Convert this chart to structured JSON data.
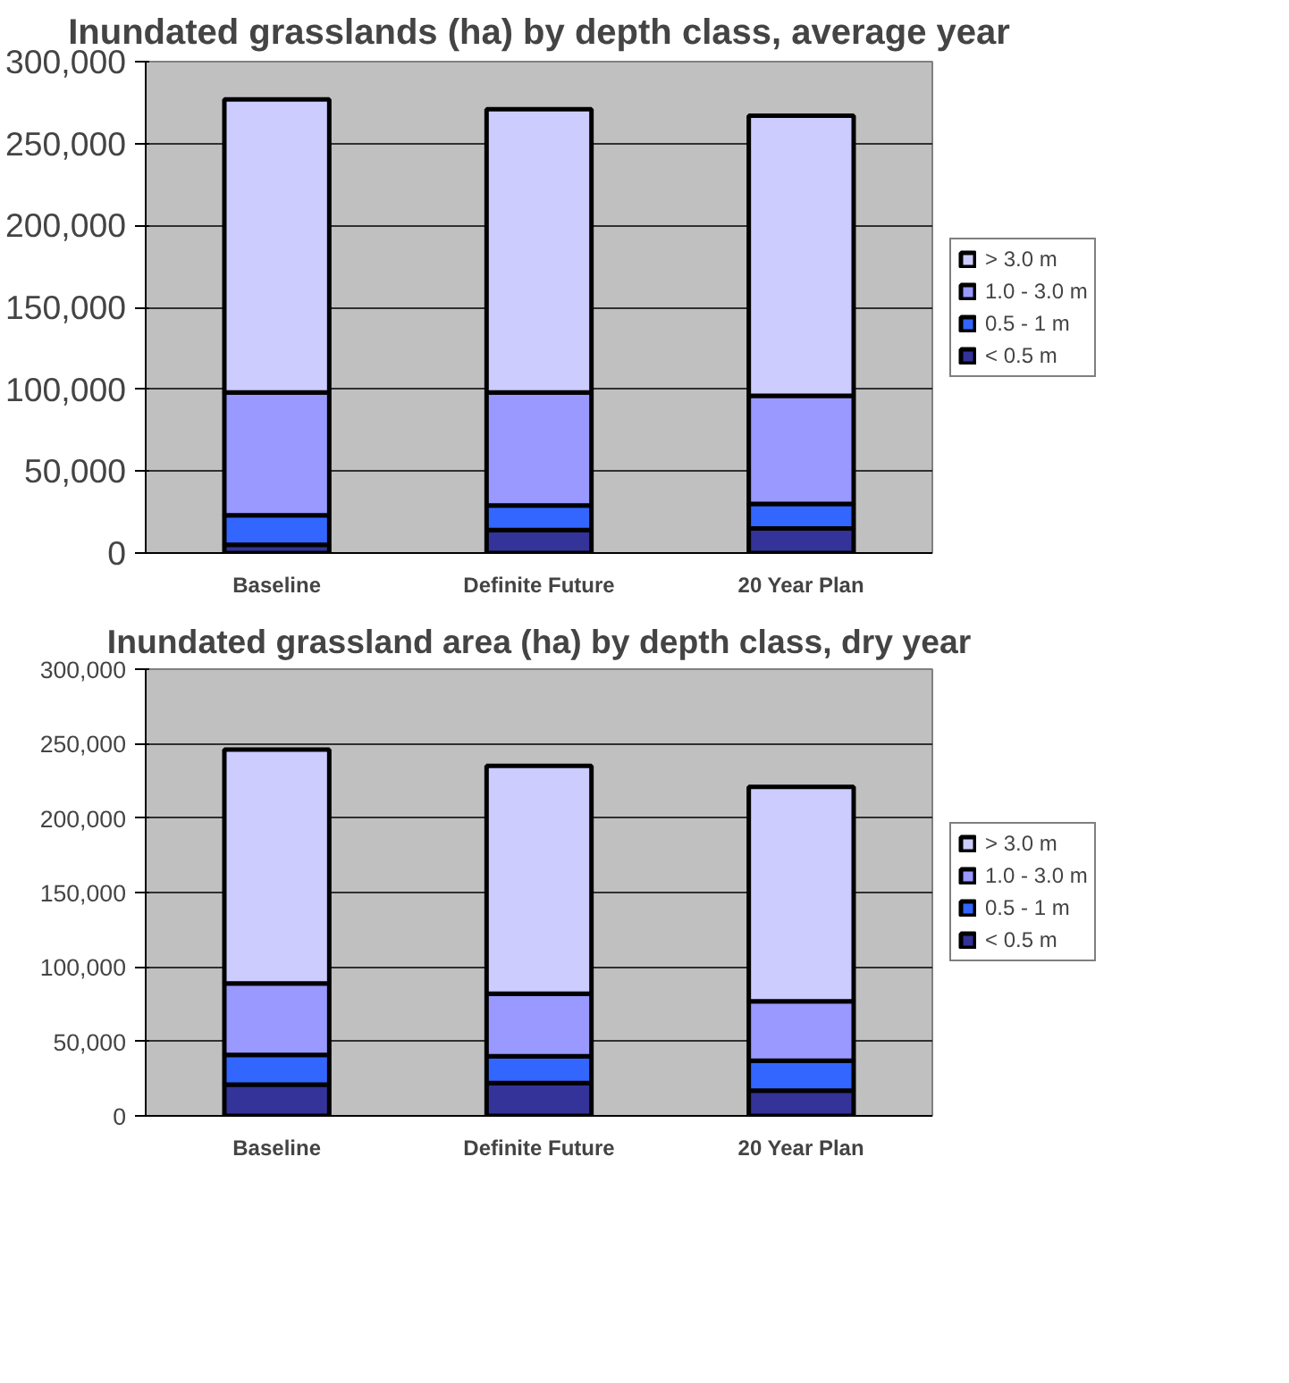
{
  "chart_data": [
    {
      "type": "bar",
      "title": "Inundated grasslands (ha) by depth class, average year",
      "categories": [
        "Baseline",
        "Definite Future",
        "20 Year Plan"
      ],
      "stacked": true,
      "series": [
        {
          "name": "< 0.5 m",
          "color": "#333399",
          "values": [
            5000,
            14000,
            15000
          ]
        },
        {
          "name": "0.5 - 1 m",
          "color": "#3366ff",
          "values": [
            18000,
            15000,
            15000
          ]
        },
        {
          "name": "1.0 - 3.0 m",
          "color": "#9999ff",
          "values": [
            75000,
            69000,
            66000
          ]
        },
        {
          "name": "> 3.0 m",
          "color": "#ccccff",
          "values": [
            179000,
            173000,
            171000
          ]
        }
      ],
      "ylim": [
        0,
        300000
      ],
      "yticks": [
        0,
        {
          "value": 50000,
          "label": "50,000"
        },
        {
          "value": 100000,
          "label": "100,000"
        },
        {
          "value": 150000,
          "label": "150,000"
        },
        {
          "value": 200000,
          "label": "200,000"
        },
        {
          "value": 250000,
          "label": "250,000"
        },
        {
          "value": 300000,
          "label": "300,000"
        }
      ],
      "grid": "y",
      "legend": "right"
    },
    {
      "type": "bar",
      "title": "Inundated grassland area (ha) by depth class, dry year",
      "categories": [
        "Baseline",
        "Definite Future",
        "20 Year Plan"
      ],
      "stacked": true,
      "series": [
        {
          "name": "< 0.5 m",
          "color": "#333399",
          "values": [
            21000,
            22000,
            17000
          ]
        },
        {
          "name": "0.5 - 1 m",
          "color": "#3366ff",
          "values": [
            20000,
            18000,
            20000
          ]
        },
        {
          "name": "1.0 - 3.0 m",
          "color": "#9999ff",
          "values": [
            48000,
            42000,
            40000
          ]
        },
        {
          "name": "> 3.0 m",
          "color": "#ccccff",
          "values": [
            157000,
            153000,
            144000
          ]
        }
      ],
      "ylim": [
        0,
        300000
      ],
      "yticks": [
        0,
        {
          "value": 50000,
          "label": "50,000"
        },
        {
          "value": 100000,
          "label": "100,000"
        },
        {
          "value": 150000,
          "label": "150,000"
        },
        {
          "value": 200000,
          "label": "200,000"
        },
        {
          "value": 250000,
          "label": "250,000"
        },
        {
          "value": 300000,
          "label": "300,000"
        }
      ],
      "grid": "y",
      "legend": "right"
    }
  ]
}
